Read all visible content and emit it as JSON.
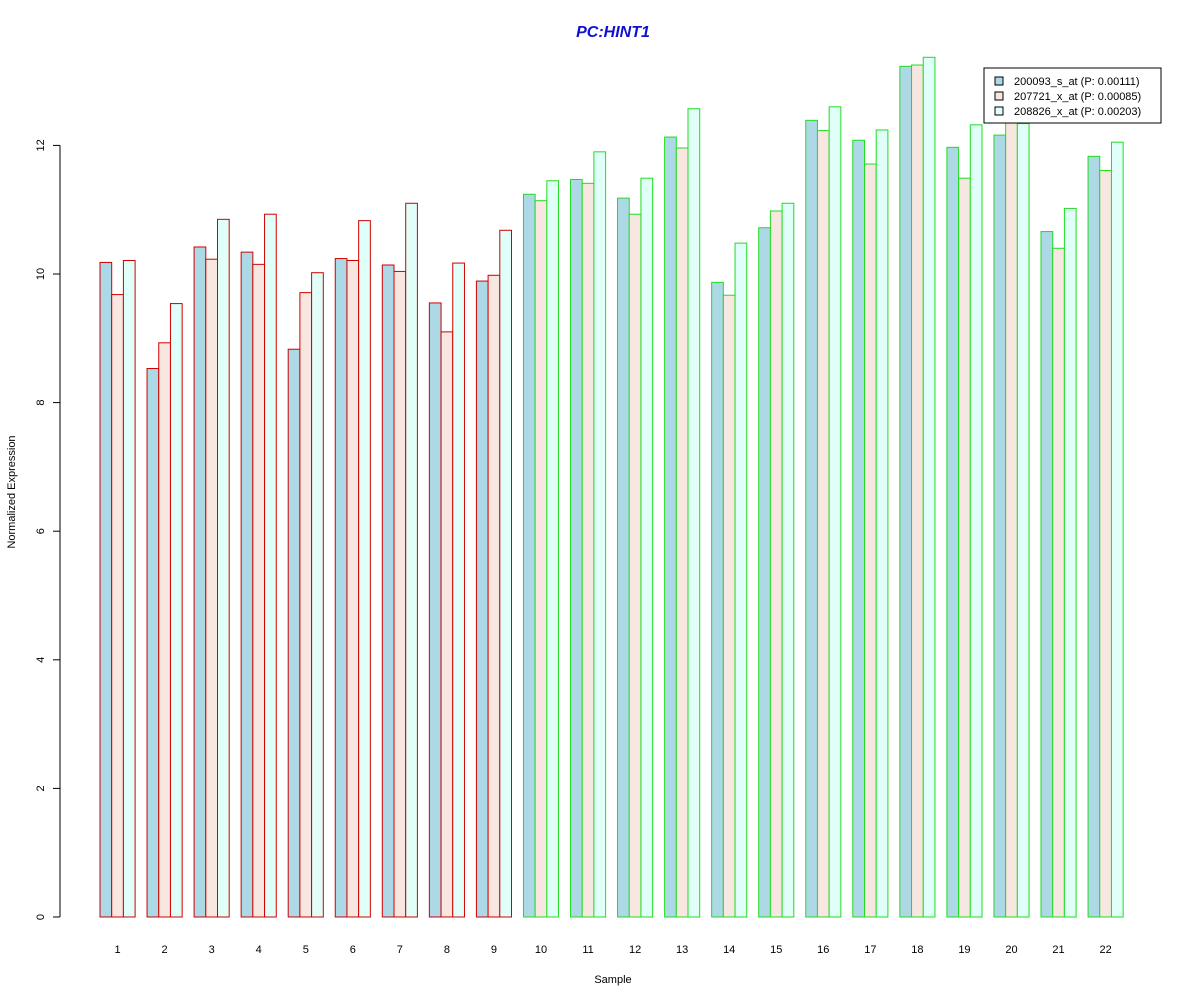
{
  "chart_data": {
    "type": "bar",
    "title": "PC:HINT1",
    "xlabel": "Sample",
    "ylabel": "Normalized Expression",
    "ylim": [
      0,
      14
    ],
    "yticks": [
      0,
      2,
      4,
      6,
      8,
      10,
      12
    ],
    "categories": [
      "1",
      "2",
      "3",
      "4",
      "5",
      "6",
      "7",
      "8",
      "9",
      "10",
      "11",
      "12",
      "13",
      "14",
      "15",
      "16",
      "17",
      "18",
      "19",
      "20",
      "21",
      "22"
    ],
    "group_border_colors": {
      "red_group_samples": [
        "1",
        "2",
        "3",
        "4",
        "5",
        "6",
        "7",
        "8",
        "9"
      ],
      "green_group_samples": [
        "10",
        "11",
        "12",
        "13",
        "14",
        "15",
        "16",
        "17",
        "18",
        "19",
        "20",
        "21",
        "22"
      ],
      "red": "#d00000",
      "green": "#20dd20"
    },
    "series": [
      {
        "name": "200093_s_at (P: 0.00111)",
        "fill": "#add8e6",
        "values": [
          10.18,
          8.53,
          10.42,
          10.34,
          8.83,
          10.24,
          10.14,
          9.55,
          9.89,
          11.24,
          11.47,
          11.18,
          12.13,
          9.87,
          10.72,
          12.39,
          12.08,
          13.23,
          11.97,
          12.16,
          10.66,
          11.83
        ]
      },
      {
        "name": "207721_x_at (P: 0.00085)",
        "fill": "#f8e6e0",
        "values": [
          9.68,
          8.93,
          10.23,
          10.15,
          9.71,
          10.21,
          10.04,
          9.1,
          9.98,
          11.14,
          11.41,
          10.93,
          11.96,
          9.67,
          10.98,
          12.23,
          11.71,
          13.25,
          11.49,
          12.38,
          10.4,
          11.61
        ]
      },
      {
        "name": "208826_x_at (P: 0.00203)",
        "fill": "#e0fff8",
        "values": [
          10.21,
          9.54,
          10.85,
          10.93,
          10.02,
          10.83,
          11.1,
          10.17,
          10.68,
          11.45,
          11.9,
          11.49,
          12.57,
          10.48,
          11.1,
          12.6,
          12.24,
          13.37,
          12.32,
          12.34,
          11.02,
          12.05
        ]
      }
    ],
    "legend_position": "top-right"
  }
}
